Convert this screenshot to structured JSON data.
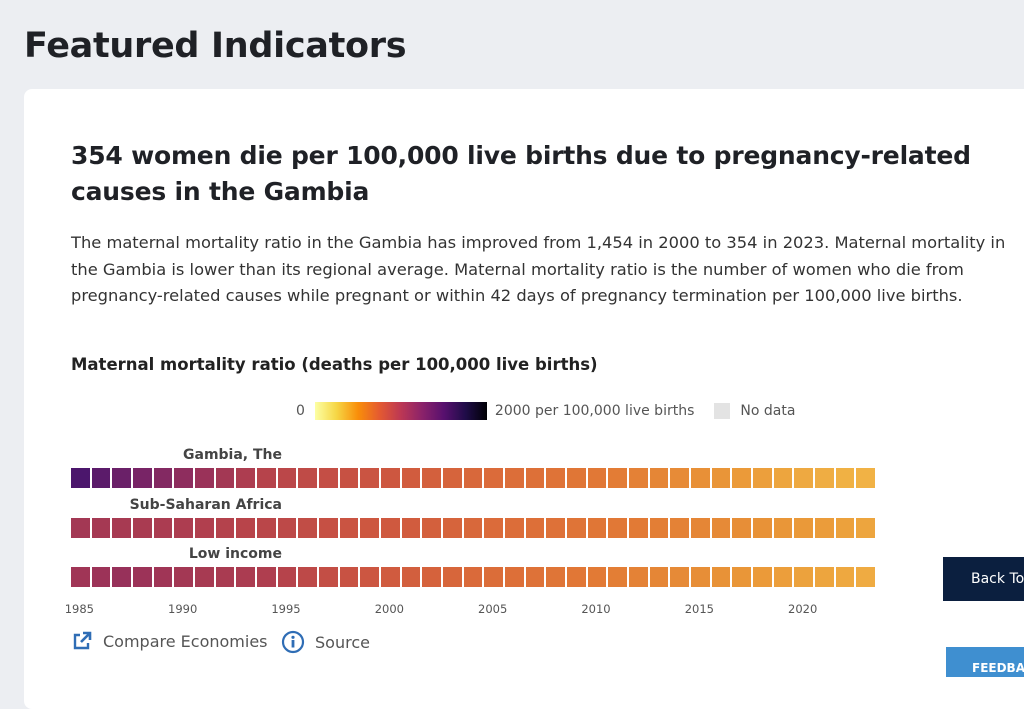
{
  "page": {
    "title": "Featured Indicators"
  },
  "card": {
    "headline": "354 women die per 100,000 live births due to pregnancy-related causes in the Gambia",
    "description": "The maternal mortality ratio in the Gambia has improved from 1,454 in 2000 to 354 in 2023. Maternal mortality in the Gambia is lower than its regional average. Maternal mortality ratio is the number of women who die from pregnancy-related causes while pregnant or within 42 days of pregnancy termination per 100,000 live births.",
    "compare_label": "Compare Economies",
    "source_label": "Source"
  },
  "chart_data": {
    "type": "heatmap",
    "title": "Maternal mortality ratio (deaths per 100,000 live births)",
    "legend": {
      "min_label": "0",
      "max_label": "2000 per 100,000 live births",
      "no_data_label": "No data",
      "range": [
        0,
        2000
      ],
      "placement": "top"
    },
    "x": [
      1985,
      1986,
      1987,
      1988,
      1989,
      1990,
      1991,
      1992,
      1993,
      1994,
      1995,
      1996,
      1997,
      1998,
      1999,
      2000,
      2001,
      2002,
      2003,
      2004,
      2005,
      2006,
      2007,
      2008,
      2009,
      2010,
      2011,
      2012,
      2013,
      2014,
      2015,
      2016,
      2017,
      2018,
      2019,
      2020,
      2021,
      2022,
      2023
    ],
    "x_tick_labels": [
      "1985",
      "1990",
      "1995",
      "2000",
      "2005",
      "2010",
      "2015",
      "2020"
    ],
    "series": [
      {
        "name": "Gambia, The",
        "values": [
          2150,
          2080,
          2020,
          1960,
          1910,
          1860,
          1810,
          1760,
          1710,
          1660,
          1620,
          1580,
          1540,
          1510,
          1480,
          1454,
          1380,
          1330,
          1280,
          1230,
          1180,
          1130,
          1080,
          1030,
          980,
          930,
          880,
          830,
          780,
          730,
          680,
          630,
          580,
          530,
          480,
          440,
          400,
          370,
          354
        ]
      },
      {
        "name": "Sub-Saharan Africa",
        "values": [
          1760,
          1750,
          1740,
          1730,
          1720,
          1710,
          1690,
          1670,
          1650,
          1630,
          1600,
          1560,
          1520,
          1480,
          1450,
          1420,
          1380,
          1330,
          1280,
          1230,
          1180,
          1140,
          1100,
          1060,
          1020,
          980,
          940,
          900,
          860,
          820,
          780,
          740,
          700,
          660,
          620,
          590,
          560,
          520,
          480
        ]
      },
      {
        "name": "Low income",
        "values": [
          1780,
          1800,
          1820,
          1800,
          1780,
          1760,
          1740,
          1730,
          1720,
          1700,
          1660,
          1600,
          1550,
          1500,
          1460,
          1400,
          1350,
          1300,
          1250,
          1200,
          1150,
          1100,
          1050,
          1000,
          950,
          900,
          860,
          820,
          780,
          740,
          700,
          660,
          620,
          580,
          540,
          510,
          480,
          450,
          420
        ]
      }
    ]
  },
  "buttons": {
    "back_to_top": "Back To",
    "feedback": "FEEDBACK"
  },
  "colors": {
    "background": "#eceef2",
    "back_button": "#0b1f3f",
    "feedback_button": "#3f8fd0",
    "link_icon": "#2f6db5"
  }
}
